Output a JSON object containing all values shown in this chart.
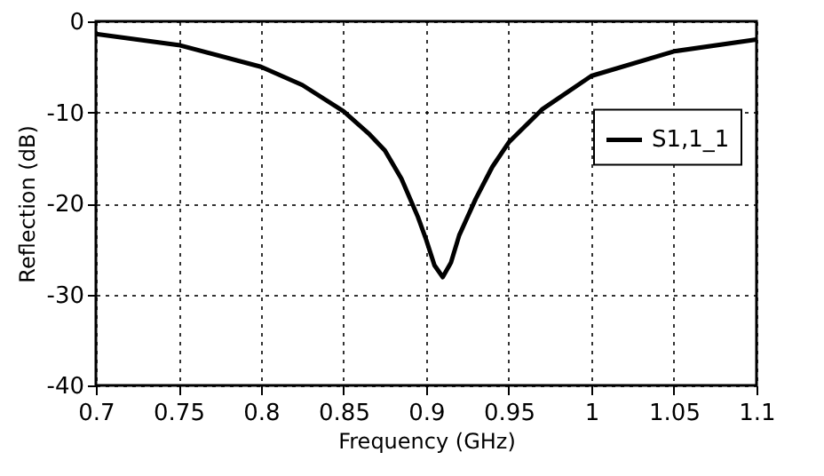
{
  "chart_data": {
    "type": "line",
    "xlabel": "Frequency (GHz)",
    "ylabel": "Reflection (dB)",
    "x": [
      0.7,
      0.75,
      0.8,
      0.825,
      0.85,
      0.865,
      0.875,
      0.885,
      0.895,
      0.9,
      0.905,
      0.91,
      0.915,
      0.92,
      0.93,
      0.94,
      0.95,
      0.97,
      1.0,
      1.05,
      1.1
    ],
    "series": [
      {
        "name": "S1,1_1",
        "color": "#000000",
        "values": [
          -1.4,
          -2.6,
          -5.0,
          -7.0,
          -9.9,
          -12.3,
          -14.2,
          -17.3,
          -21.5,
          -24.0,
          -26.8,
          -28.1,
          -26.5,
          -23.5,
          -19.5,
          -16.0,
          -13.3,
          -9.7,
          -6.0,
          -3.3,
          -2.0
        ]
      }
    ],
    "xlim": [
      0.7,
      1.1
    ],
    "xticks": [
      0.7,
      0.75,
      0.8,
      0.85,
      0.9,
      0.95,
      1,
      1.05,
      1.1
    ],
    "ylim": [
      -40,
      0
    ],
    "yticks": [
      -40,
      -30,
      -20,
      -10,
      0
    ],
    "grid": true,
    "legend": "top right",
    "line_style": "solid",
    "marker": "none"
  }
}
